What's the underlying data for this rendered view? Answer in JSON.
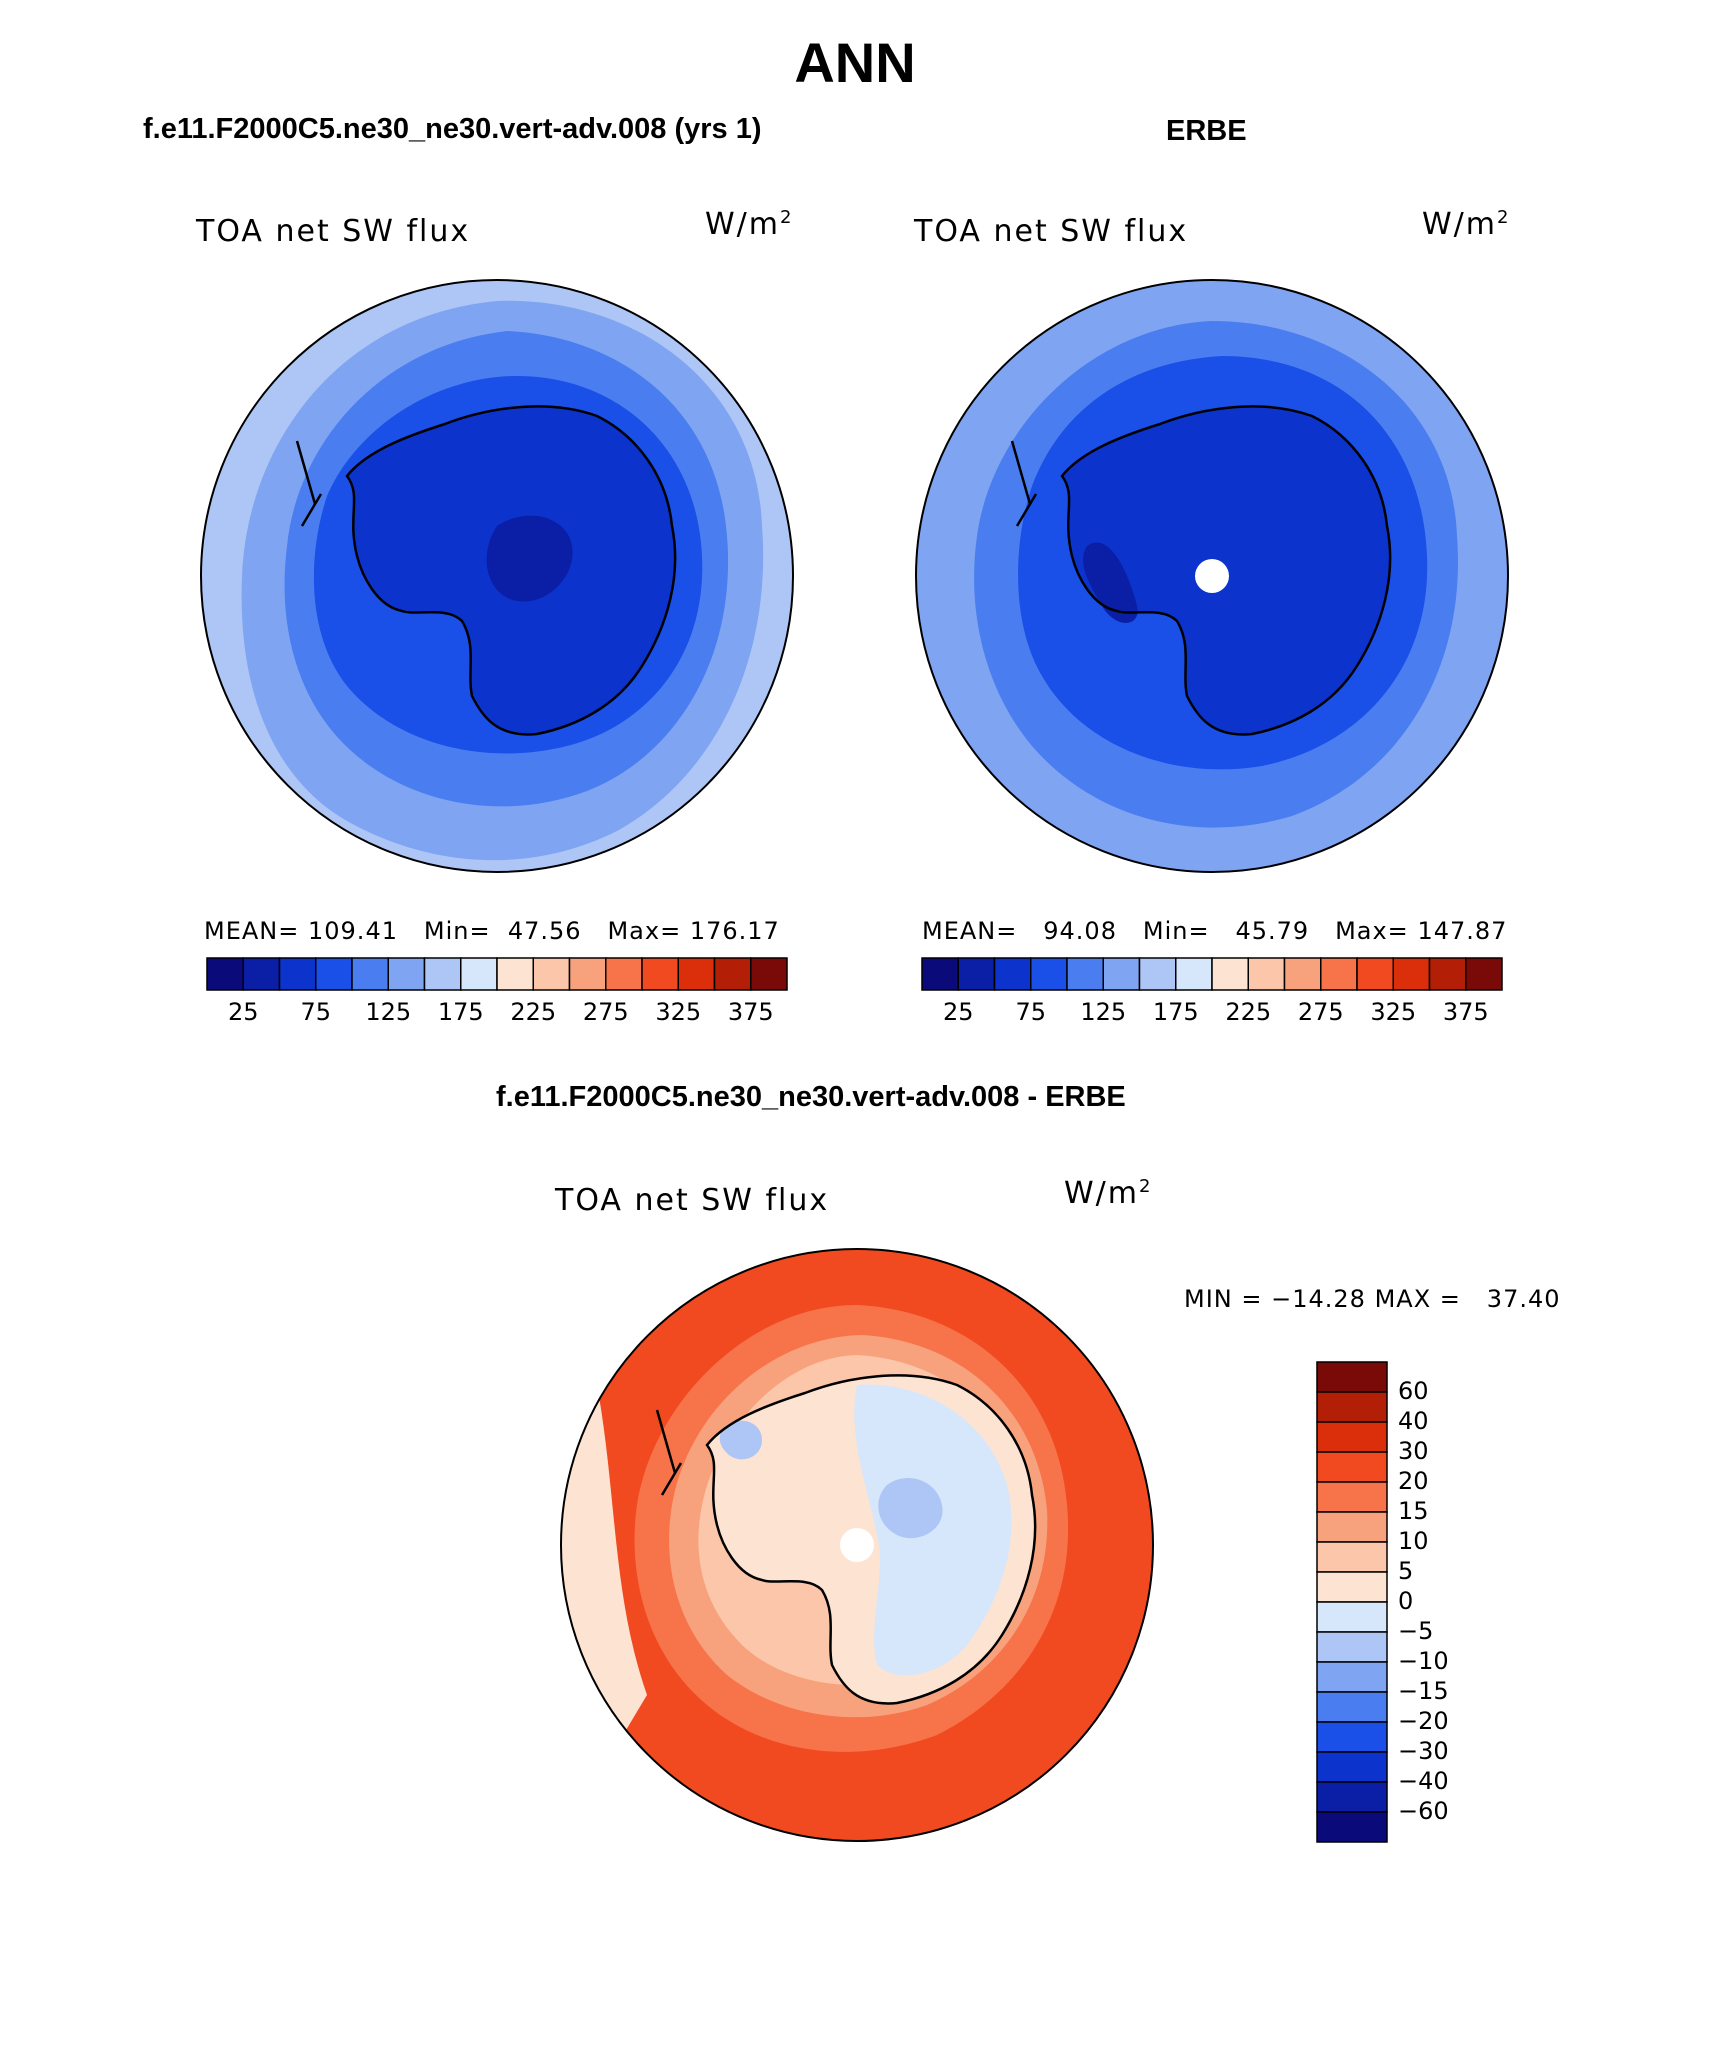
{
  "title": "ANN",
  "panels": [
    {
      "case_title": "f.e11.F2000C5.ne30_ne30.vert-adv.008 (yrs 1)",
      "variable": "TOA net SW flux",
      "units_base": "W/m",
      "units_exp": "2",
      "stats": {
        "mean_label": "MEAN=",
        "mean": "109.41",
        "min_label": "Min=",
        "min": "47.56",
        "max_label": "Max=",
        "max": "176.17"
      }
    },
    {
      "case_title": "ERBE",
      "variable": "TOA net SW flux",
      "units_base": "W/m",
      "units_exp": "2",
      "stats": {
        "mean_label": "MEAN=",
        "mean": "94.08",
        "min_label": "Min=",
        "min": "45.79",
        "max_label": "Max=",
        "max": "147.87"
      }
    },
    {
      "case_title": "f.e11.F2000C5.ne30_ne30.vert-adv.008 - ERBE",
      "variable": "TOA net SW flux",
      "units_base": "W/m",
      "units_exp": "2",
      "stats": {
        "min_label": "MIN =",
        "min": "−14.28",
        "max_label": "MAX =",
        "max": "37.40"
      }
    }
  ],
  "colorbar_abs": {
    "colors": [
      "#0a0a7a",
      "#0b1fa6",
      "#0c33cc",
      "#1a4fe8",
      "#4a7ef0",
      "#7fa4f2",
      "#aec6f6",
      "#d6e6fb",
      "#fde4d2",
      "#fbc6a9",
      "#f7a27c",
      "#f7734a",
      "#f24a20",
      "#db2e0a",
      "#b21e06",
      "#7a0a08"
    ],
    "tick_labels": [
      "25",
      "75",
      "125",
      "175",
      "225",
      "275",
      "325",
      "375"
    ]
  },
  "colorbar_diff": {
    "colors": [
      "#0a0a7a",
      "#0b1fa6",
      "#0c33cc",
      "#1a4fe8",
      "#4a7ef0",
      "#7fa4f2",
      "#aec6f6",
      "#d6e6fb",
      "#fde4d2",
      "#fbc6a9",
      "#f7a27c",
      "#f7734a",
      "#f24a20",
      "#db2e0a",
      "#b21e06",
      "#7a0a08"
    ],
    "tick_labels": [
      "60",
      "40",
      "30",
      "20",
      "15",
      "10",
      "5",
      "0",
      "−5",
      "−10",
      "−15",
      "−20",
      "−30",
      "−40",
      "−60"
    ]
  },
  "map_colors": {
    "ocean_outer_abs": "#aec6f6",
    "ring_abs": "#7fa4f2",
    "mid_abs": "#4a7ef0",
    "inner_abs": "#1a4fe8",
    "ice_abs": "#0c33cc",
    "deep_abs": "#0b1fa6",
    "diff_outer": "#f24a20",
    "diff_ring": "#f7734a",
    "diff_mid": "#f7a27c",
    "diff_light": "#fbc6a9",
    "diff_pale": "#fde4d2",
    "diff_neg": "#d6e6fb",
    "diff_neg2": "#aec6f6",
    "pole_hole": "#ffffff",
    "coastline": "#000000"
  }
}
